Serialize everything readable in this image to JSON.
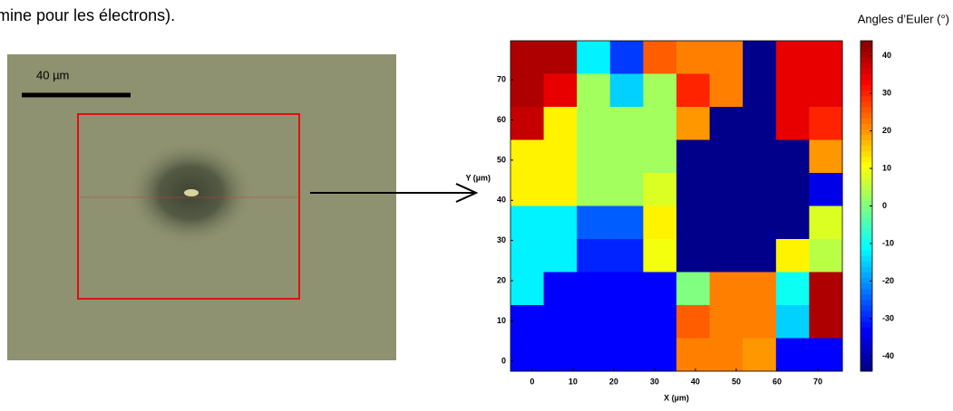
{
  "caption_fragment": "mine pour les électrons).",
  "micrograph": {
    "scale_bar_label": "40 µm"
  },
  "chart_data": {
    "type": "heatmap",
    "xlabel": "X (µm)",
    "ylabel": "Y (µm)",
    "xlim": [
      -5.3,
      76
    ],
    "ylim": [
      -2.5,
      79.7
    ],
    "xticks": [
      0,
      10,
      20,
      30,
      40,
      50,
      60,
      70
    ],
    "yticks": [
      0,
      10,
      20,
      30,
      40,
      50,
      60,
      70
    ],
    "z": [
      [
        40,
        40,
        -12,
        -28,
        25,
        22,
        22,
        -43,
        35,
        35
      ],
      [
        40,
        35,
        3,
        -15,
        3,
        30,
        22,
        -43,
        35,
        35
      ],
      [
        38,
        12,
        3,
        3,
        3,
        20,
        -43,
        -43,
        35,
        30
      ],
      [
        12,
        12,
        3,
        3,
        3,
        -43,
        -43,
        -43,
        -43,
        20
      ],
      [
        12,
        12,
        3,
        3,
        8,
        -43,
        -43,
        -43,
        -43,
        -35
      ],
      [
        -12,
        -12,
        -25,
        -25,
        12,
        -43,
        -43,
        -43,
        -43,
        8
      ],
      [
        -12,
        -12,
        -30,
        -30,
        10,
        -43,
        -43,
        -43,
        12,
        5
      ],
      [
        -12,
        -33,
        -33,
        -33,
        -33,
        0,
        22,
        22,
        -10,
        40
      ],
      [
        -33,
        -33,
        -33,
        -33,
        -33,
        25,
        22,
        22,
        -15,
        40
      ],
      [
        -33,
        -33,
        -33,
        -33,
        -33,
        22,
        22,
        20,
        -33,
        -33
      ]
    ],
    "colormap": "jet",
    "colorbar_label": "Angles d’Euler (°)",
    "clim": [
      -44,
      44
    ],
    "cticks": [
      40,
      30,
      20,
      10,
      0,
      -10,
      -20,
      -30,
      -40
    ]
  }
}
